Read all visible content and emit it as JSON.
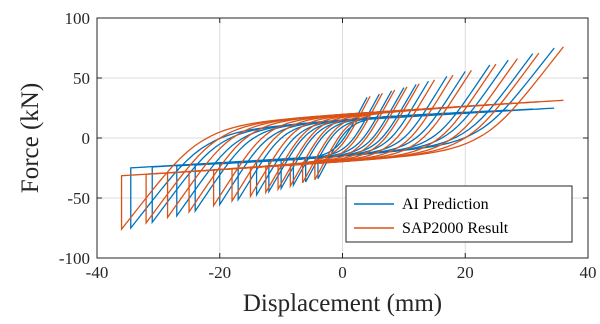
{
  "chart_data": {
    "type": "line",
    "xlabel": "Displacement (mm)",
    "ylabel": "Force (kN)",
    "xlim": [
      -40,
      40
    ],
    "ylim": [
      -100,
      100
    ],
    "x_ticks": [
      -40,
      -20,
      0,
      20,
      40
    ],
    "y_ticks": [
      -100,
      -50,
      0,
      50,
      100
    ],
    "x_tick_labels": [
      "-40",
      "-20",
      "0",
      "20",
      "40"
    ],
    "y_tick_labels": [
      "-100",
      "-50",
      "0",
      "50",
      "100"
    ],
    "grid": true,
    "legend_position": "bottom-right",
    "series": [
      {
        "name": "AI Prediction",
        "color": "#0072BD",
        "loop_amplitudes": [
          4,
          6,
          8,
          10,
          12,
          14,
          17,
          20,
          24,
          27,
          31,
          34.5
        ],
        "peak_force": 75,
        "yield_force": 42,
        "unload_stiffness": 10,
        "post_yield_slope": 0.52
      },
      {
        "name": "SAP2000 Result",
        "color": "#D95319",
        "loop_amplitudes": [
          4.5,
          6.5,
          8.5,
          10.5,
          12.5,
          15,
          18,
          21,
          25,
          28.5,
          32,
          36
        ],
        "peak_force": 76,
        "yield_force": 45,
        "unload_stiffness": 10,
        "post_yield_slope": 0.55
      }
    ]
  }
}
